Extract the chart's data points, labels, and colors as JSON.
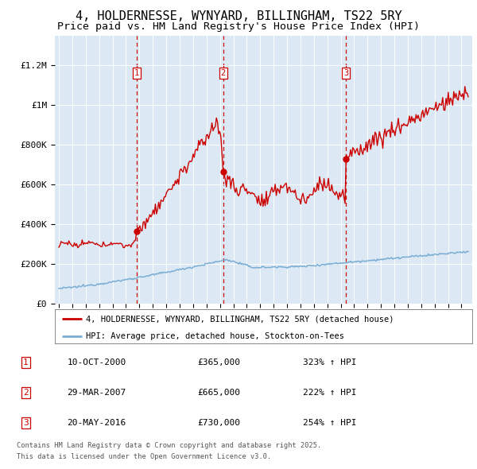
{
  "title_line1": "4, HOLDERNESSE, WYNYARD, BILLINGHAM, TS22 5RY",
  "title_line2": "Price paid vs. HM Land Registry's House Price Index (HPI)",
  "ylabel_ticks": [
    "£0",
    "£200K",
    "£400K",
    "£600K",
    "£800K",
    "£1M",
    "£1.2M"
  ],
  "ylabel_values": [
    0,
    200000,
    400000,
    600000,
    800000,
    1000000,
    1200000
  ],
  "ylim": [
    0,
    1350000
  ],
  "xlim_start": 1994.7,
  "xlim_end": 2025.8,
  "background_color": "#dce9f5",
  "red_line_color": "#cc0000",
  "blue_line_color": "#7aadd4",
  "vertical_line_color": "#cc0000",
  "transactions": [
    {
      "num": 1,
      "year_x": 2000.78,
      "price": 365000,
      "date": "10-OCT-2000",
      "pct": "323%",
      "dir": "↑"
    },
    {
      "num": 2,
      "year_x": 2007.24,
      "price": 665000,
      "date": "29-MAR-2007",
      "pct": "222%",
      "dir": "↑"
    },
    {
      "num": 3,
      "year_x": 2016.38,
      "price": 730000,
      "date": "20-MAY-2016",
      "pct": "254%",
      "dir": "↑"
    }
  ],
  "marker_y": 1160000,
  "legend_label_red": "4, HOLDERNESSE, WYNYARD, BILLINGHAM, TS22 5RY (detached house)",
  "legend_label_blue": "HPI: Average price, detached house, Stockton-on-Tees",
  "footer_line1": "Contains HM Land Registry data © Crown copyright and database right 2025.",
  "footer_line2": "This data is licensed under the Open Government Licence v3.0.",
  "grid_color": "#ffffff",
  "title_fontsize": 11,
  "subtitle_fontsize": 9.5
}
